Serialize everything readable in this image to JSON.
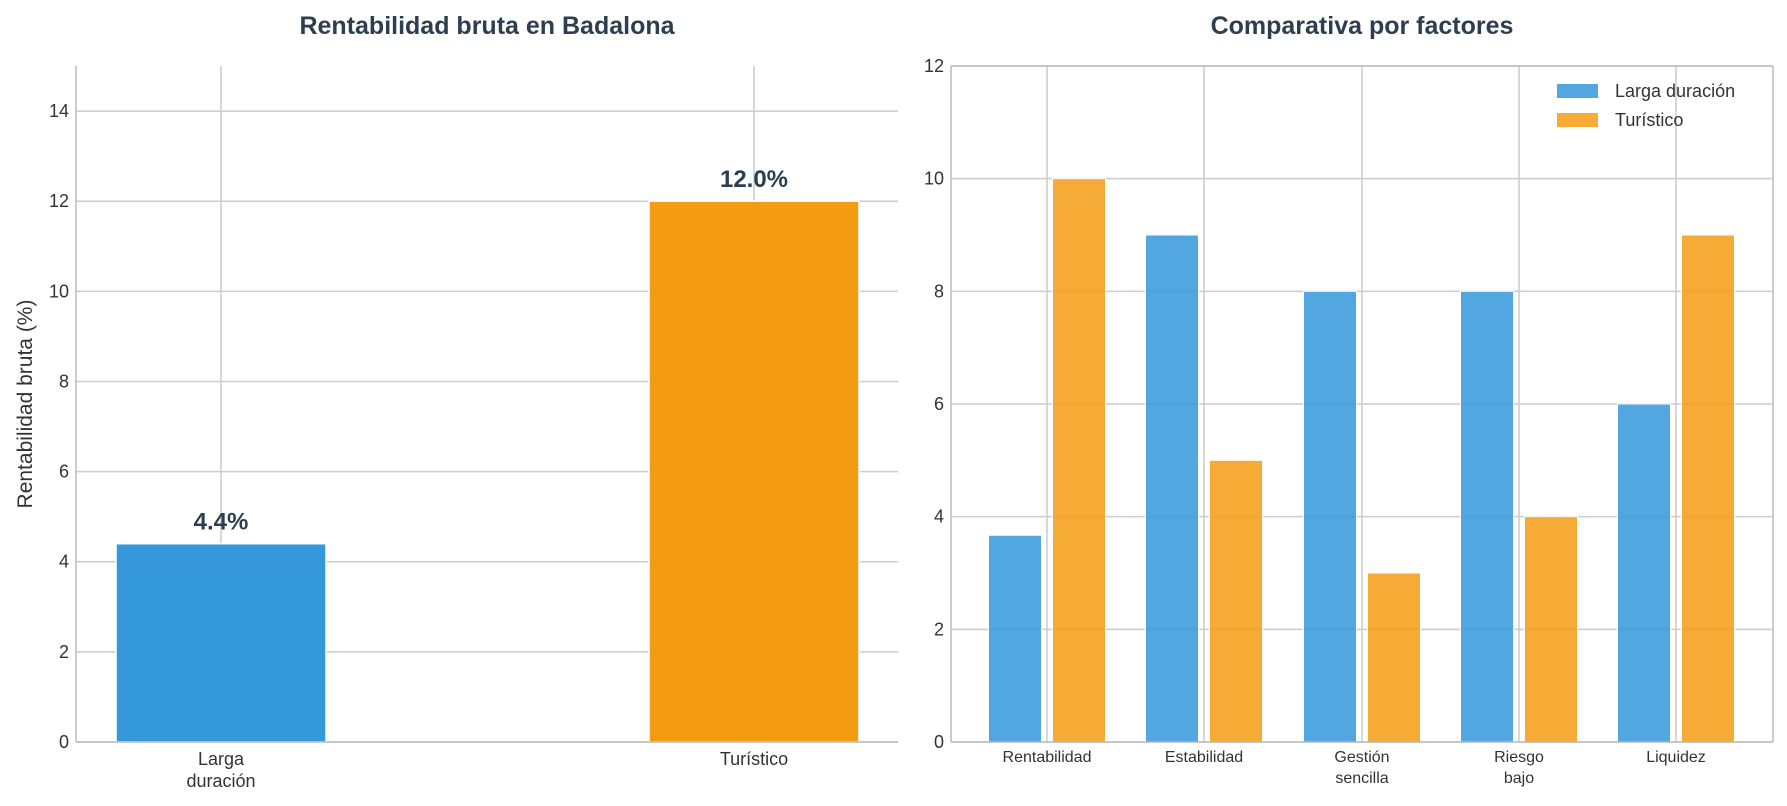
{
  "chart_data": [
    {
      "type": "bar",
      "title": "Rentabilidad bruta en Badalona",
      "ylabel": "Rentabilidad bruta (%)",
      "xlabel": "",
      "categories": [
        [
          "Larga",
          "duración"
        ],
        [
          "Turístico"
        ]
      ],
      "values": [
        4.4,
        12.0
      ],
      "data_labels": [
        "4.4%",
        "12.0%"
      ],
      "colors": [
        "#3498db",
        "#f39c12"
      ],
      "ylim": [
        0,
        15
      ],
      "yticks": [
        0,
        2,
        4,
        6,
        8,
        10,
        12,
        14
      ],
      "grid": true
    },
    {
      "type": "bar",
      "title": "Comparativa por factores",
      "categories": [
        [
          "Rentabilidad"
        ],
        [
          "Estabilidad"
        ],
        [
          "Gestión",
          "sencilla"
        ],
        [
          "Riesgo",
          "bajo"
        ],
        [
          "Liquidez"
        ]
      ],
      "series": [
        {
          "name": "Larga duración",
          "values": [
            3.67,
            9,
            8,
            8,
            6
          ],
          "color": "#3498db"
        },
        {
          "name": "Turístico",
          "values": [
            10,
            5,
            3,
            4,
            9
          ],
          "color": "#f39c12"
        }
      ],
      "ylim": [
        0,
        12
      ],
      "yticks": [
        0,
        2,
        4,
        6,
        8,
        10,
        12
      ],
      "legend": "top-right",
      "grid": true
    }
  ]
}
